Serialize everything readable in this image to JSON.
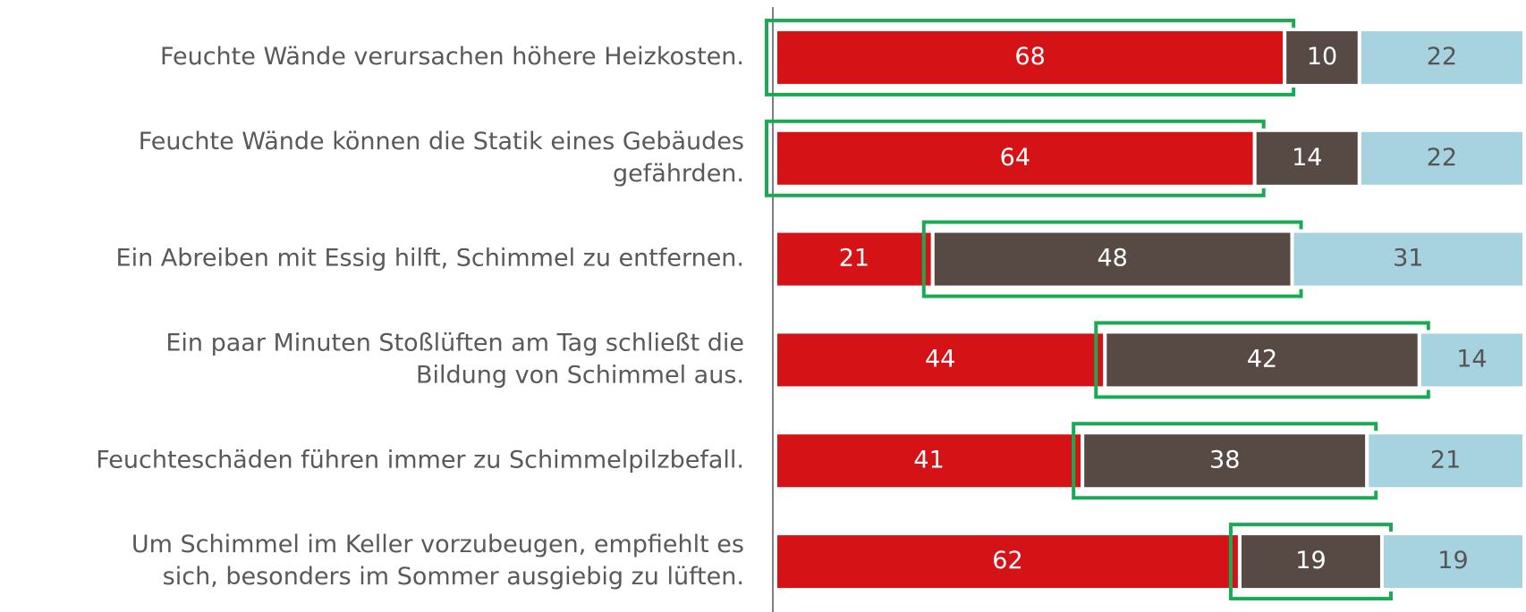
{
  "chart_data": {
    "type": "stacked-barh",
    "categories": [
      [
        "Feuchte Wände verursachen höhere Heizkosten."
      ],
      [
        "Feuchte Wände können die Statik eines Gebäudes",
        "gefährden."
      ],
      [
        "Ein Abreiben mit Essig hilft, Schimmel zu entfernen."
      ],
      [
        "Ein paar Minuten Stoßlüften am Tag schließt die",
        "Bildung von Schimmel aus."
      ],
      [
        "Feuchteschäden führen immer zu Schimmelpilzbefall."
      ],
      [
        "Um Schimmel im Keller vorzubeugen, empfiehlt es",
        "sich, besonders im Sommer ausgiebig zu lüften."
      ]
    ],
    "series": [
      {
        "color": "#d51317",
        "label_color": "#ffffff",
        "values": [
          68,
          64,
          21,
          44,
          41,
          62
        ]
      },
      {
        "color": "#574a45",
        "label_color": "#ffffff",
        "values": [
          10,
          14,
          48,
          42,
          38,
          19
        ]
      },
      {
        "color": "#a6d3df",
        "label_color": "#555555",
        "values": [
          22,
          22,
          31,
          14,
          21,
          19
        ]
      }
    ],
    "xlim": [
      0,
      100
    ],
    "highlight": [
      0,
      0,
      1,
      1,
      1,
      1
    ],
    "highlight_color": "#1aaa55"
  }
}
